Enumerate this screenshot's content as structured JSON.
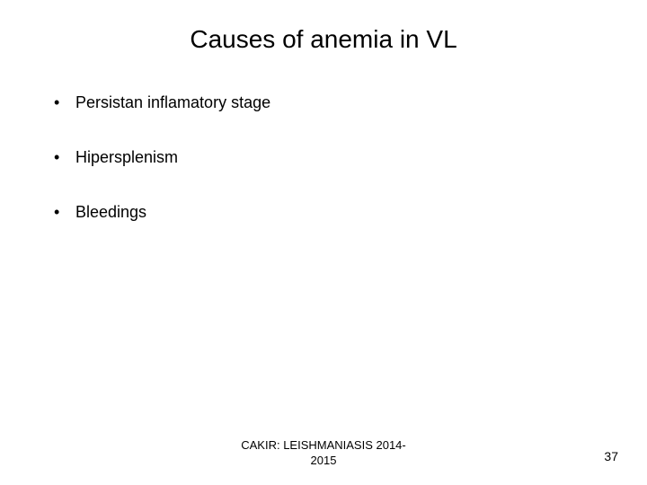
{
  "slide": {
    "title": "Causes of anemia in VL",
    "title_fontsize": 28,
    "background_color": "#ffffff",
    "text_color": "#000000",
    "bullets": [
      "Persistan inflamatory stage",
      "Hipersplenism",
      "Bleedings"
    ],
    "bullet_fontsize": 18,
    "footer_line1": "CAKIR: LEISHMANIASIS  2014-",
    "footer_line2": "2015",
    "footer_fontsize": 13,
    "page_number": "37",
    "page_number_fontsize": 14
  }
}
